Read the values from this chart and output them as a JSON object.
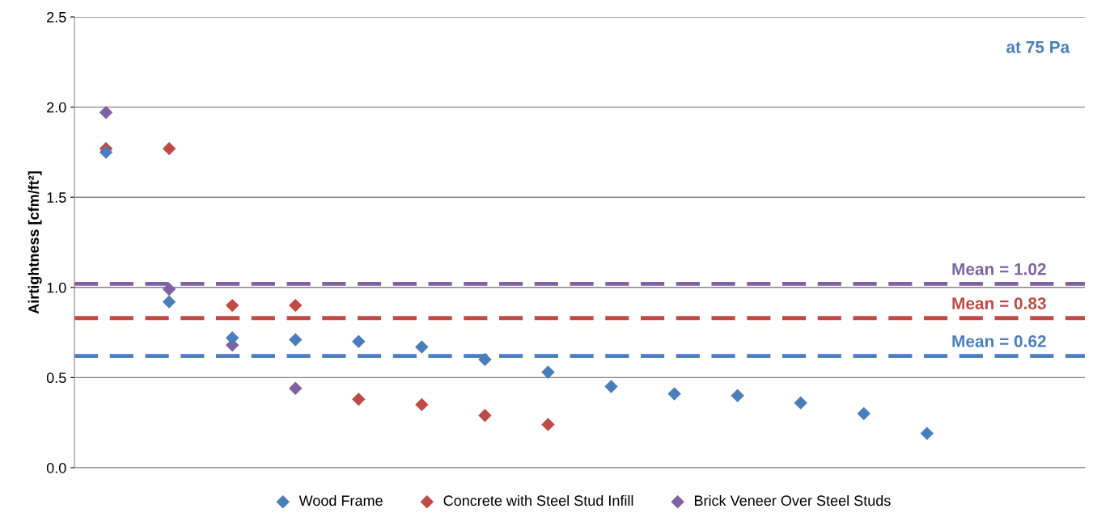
{
  "chart_data": {
    "type": "scatter",
    "ylabel": "Airtightness [cfm/ft²]",
    "categories": [
      null,
      null,
      null,
      null,
      null,
      null,
      null,
      null,
      null,
      null,
      null,
      null,
      null,
      null,
      null,
      null
    ],
    "series": [
      {
        "name": "Wood Frame",
        "color": "#4a7ebb",
        "values": [
          1.75,
          0.92,
          0.72,
          0.71,
          0.7,
          0.67,
          0.6,
          0.53,
          0.45,
          0.41,
          0.4,
          0.36,
          0.3,
          0.19,
          null,
          null
        ]
      },
      {
        "name": "Concrete with Steel Stud Infill",
        "color": "#be4b48",
        "values": [
          1.77,
          1.77,
          0.9,
          0.9,
          0.38,
          0.35,
          0.29,
          0.24,
          null,
          null,
          null,
          null,
          null,
          null,
          null,
          null
        ]
      },
      {
        "name": "Brick Veneer Over Steel Studs",
        "color": "#7f62a1",
        "values": [
          1.97,
          0.99,
          0.68,
          0.44,
          null,
          null,
          null,
          null,
          null,
          null,
          null,
          null,
          null,
          null,
          null,
          null
        ]
      }
    ],
    "ref_lines": [
      {
        "axis": "y",
        "value": 1.02,
        "label": "Mean = 1.02",
        "color": "#7f62a1",
        "line_style": "dashed"
      },
      {
        "axis": "y",
        "value": 0.83,
        "label": "Mean = 0.83",
        "color": "#be4b48",
        "line_style": "dashed"
      },
      {
        "axis": "y",
        "value": 0.62,
        "label": "Mean = 0.62",
        "color": "#4a7ebb",
        "line_style": "dashed"
      }
    ],
    "annotations": [
      "at 75 Pa"
    ],
    "ylim": [
      0,
      2.5
    ],
    "yticks": [
      {
        "value": 0,
        "label": "0.0"
      },
      {
        "value": 0.5,
        "label": "0.5"
      },
      {
        "value": 1,
        "label": "1.0"
      },
      {
        "value": 1.5,
        "label": "1.5"
      },
      {
        "value": 2,
        "label": "2.0"
      },
      {
        "value": 2.5,
        "label": "2.5"
      }
    ],
    "grid": "y",
    "legend": "bottom",
    "marker": "diamond"
  }
}
